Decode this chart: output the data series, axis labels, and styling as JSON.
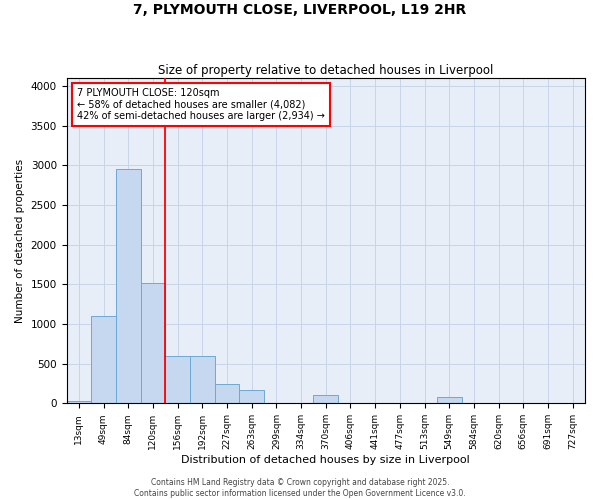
{
  "title": "7, PLYMOUTH CLOSE, LIVERPOOL, L19 2HR",
  "subtitle": "Size of property relative to detached houses in Liverpool",
  "xlabel": "Distribution of detached houses by size in Liverpool",
  "ylabel": "Number of detached properties",
  "footer_line1": "Contains HM Land Registry data © Crown copyright and database right 2025.",
  "footer_line2": "Contains public sector information licensed under the Open Government Licence v3.0.",
  "bin_labels": [
    "13sqm",
    "49sqm",
    "84sqm",
    "120sqm",
    "156sqm",
    "192sqm",
    "227sqm",
    "263sqm",
    "299sqm",
    "334sqm",
    "370sqm",
    "406sqm",
    "441sqm",
    "477sqm",
    "513sqm",
    "549sqm",
    "584sqm",
    "620sqm",
    "656sqm",
    "691sqm",
    "727sqm"
  ],
  "bar_values": [
    30,
    1100,
    2950,
    1520,
    600,
    600,
    240,
    170,
    0,
    0,
    100,
    0,
    0,
    0,
    0,
    80,
    0,
    0,
    0,
    0,
    0
  ],
  "bar_color": "#c5d8f0",
  "bar_edge_color": "#6aaad4",
  "grid_color": "#c8d4e8",
  "background_color": "#e8eef8",
  "red_line_index": 3,
  "annotation_text_line1": "7 PLYMOUTH CLOSE: 120sqm",
  "annotation_text_line2": "← 58% of detached houses are smaller (4,082)",
  "annotation_text_line3": "42% of semi-detached houses are larger (2,934) →",
  "ylim": [
    0,
    4100
  ],
  "yticks": [
    0,
    500,
    1000,
    1500,
    2000,
    2500,
    3000,
    3500,
    4000
  ]
}
